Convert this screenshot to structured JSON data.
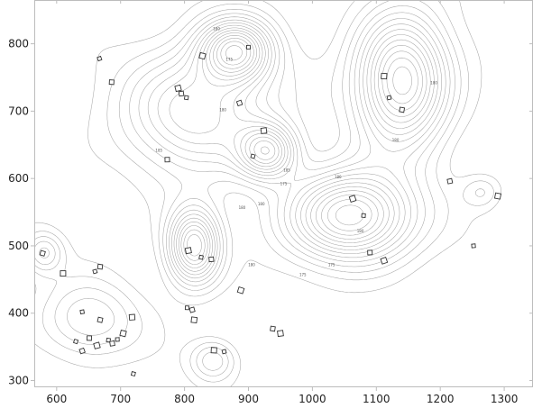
{
  "chart_data": {
    "type": "contour-map",
    "title": "",
    "xlabel": "",
    "ylabel": "",
    "xlim": [
      565,
      1345
    ],
    "ylim": [
      290,
      865
    ],
    "x_ticks": [
      600,
      700,
      800,
      900,
      1000,
      1100,
      1200,
      1300
    ],
    "y_ticks": [
      300,
      400,
      500,
      600,
      700,
      800
    ],
    "grid": false,
    "legend": "none",
    "line_color": "#a8a8a8",
    "hills": [
      {
        "cx": 1140,
        "cy": 745,
        "peak": 195,
        "rx": 70,
        "ry": 95
      },
      {
        "cx": 1060,
        "cy": 545,
        "peak": 195,
        "rx": 95,
        "ry": 65
      },
      {
        "cx": 880,
        "cy": 790,
        "peak": 190,
        "rx": 55,
        "ry": 45
      },
      {
        "cx": 815,
        "cy": 500,
        "peak": 190,
        "rx": 40,
        "ry": 55
      },
      {
        "cx": 930,
        "cy": 640,
        "peak": 185,
        "rx": 45,
        "ry": 40
      },
      {
        "cx": 820,
        "cy": 700,
        "peak": 180,
        "rx": 110,
        "ry": 90
      },
      {
        "cx": 650,
        "cy": 390,
        "peak": 170,
        "rx": 75,
        "ry": 55
      },
      {
        "cx": 580,
        "cy": 490,
        "peak": 170,
        "rx": 30,
        "ry": 30
      },
      {
        "cx": 845,
        "cy": 330,
        "peak": 170,
        "rx": 35,
        "ry": 30
      },
      {
        "cx": 1265,
        "cy": 580,
        "peak": 165,
        "rx": 30,
        "ry": 25
      }
    ],
    "contour_levels": {
      "start": 160,
      "end": 195,
      "step": 2.5
    },
    "elevation_labels": [
      "180",
      "175",
      "180",
      "175",
      "180",
      "180",
      "180",
      "180",
      "175",
      "180",
      "180",
      "180",
      "185",
      "185",
      "175"
    ],
    "buildings": [
      [
        667,
        778
      ],
      [
        686,
        743
      ],
      [
        790,
        734
      ],
      [
        803,
        720
      ],
      [
        795,
        726
      ],
      [
        828,
        782
      ],
      [
        900,
        795
      ],
      [
        886,
        712
      ],
      [
        1112,
        752
      ],
      [
        1120,
        720
      ],
      [
        1140,
        702
      ],
      [
        924,
        671
      ],
      [
        907,
        633
      ],
      [
        773,
        628
      ],
      [
        1063,
        570
      ],
      [
        1080,
        545
      ],
      [
        1215,
        596
      ],
      [
        1290,
        574
      ],
      [
        1252,
        500
      ],
      [
        578,
        489
      ],
      [
        610,
        459
      ],
      [
        660,
        462
      ],
      [
        668,
        469
      ],
      [
        806,
        493
      ],
      [
        826,
        483
      ],
      [
        842,
        480
      ],
      [
        888,
        434
      ],
      [
        804,
        408
      ],
      [
        812,
        405
      ],
      [
        815,
        390
      ],
      [
        640,
        402
      ],
      [
        668,
        390
      ],
      [
        718,
        394
      ],
      [
        630,
        358
      ],
      [
        651,
        363
      ],
      [
        663,
        352
      ],
      [
        681,
        360
      ],
      [
        687,
        355
      ],
      [
        704,
        370
      ],
      [
        695,
        361
      ],
      [
        640,
        344
      ],
      [
        846,
        345
      ],
      [
        862,
        343
      ],
      [
        938,
        377
      ],
      [
        950,
        370
      ],
      [
        720,
        310
      ],
      [
        1090,
        490
      ],
      [
        1112,
        478
      ]
    ]
  }
}
